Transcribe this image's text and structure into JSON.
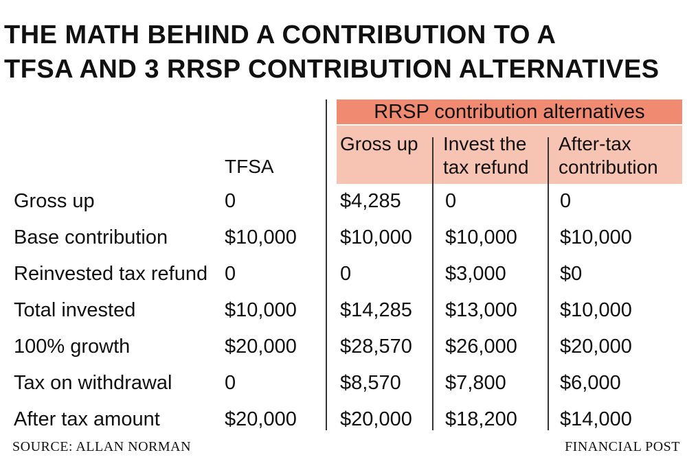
{
  "title": {
    "line1": "THE MATH BEHIND A CONTRIBUTION TO A",
    "line2": "TFSA AND 3 RRSP CONTRIBUTION ALTERNATIVES"
  },
  "colors": {
    "band": "#f08a70",
    "subband": "#f7c3b3",
    "text": "#111111",
    "rule": "#333333"
  },
  "table": {
    "tfsa_header": "TFSA",
    "group_header": "RRSP contribution alternatives",
    "sub_headers": [
      {
        "line1": "Gross up",
        "line2": ""
      },
      {
        "line1": "Invest the",
        "line2": "tax refund"
      },
      {
        "line1": "After-tax",
        "line2": "contribution"
      }
    ],
    "rows": [
      {
        "label": "Gross up",
        "tfsa": "0",
        "gross_up": "$4,285",
        "invest_refund": "0",
        "after_tax": "0"
      },
      {
        "label": "Base contribution",
        "tfsa": "$10,000",
        "gross_up": "$10,000",
        "invest_refund": "$10,000",
        "after_tax": "$10,000"
      },
      {
        "label": "Reinvested tax refund",
        "tfsa": "0",
        "gross_up": "0",
        "invest_refund": "$3,000",
        "after_tax": "$0"
      },
      {
        "label": "Total invested",
        "tfsa": "$10,000",
        "gross_up": "$14,285",
        "invest_refund": "$13,000",
        "after_tax": "$10,000"
      },
      {
        "label": "100% growth",
        "tfsa": "$20,000",
        "gross_up": "$28,570",
        "invest_refund": "$26,000",
        "after_tax": "$20,000"
      },
      {
        "label": "Tax on withdrawal",
        "tfsa": "0",
        "gross_up": "$8,570",
        "invest_refund": "$7,800",
        "after_tax": "$6,000"
      },
      {
        "label": "After tax amount",
        "tfsa": "$20,000",
        "gross_up": "$20,000",
        "invest_refund": "$18,200",
        "after_tax": "$14,000"
      }
    ]
  },
  "footer": {
    "source": "SOURCE: ALLAN NORMAN",
    "credit": "FINANCIAL POST"
  }
}
